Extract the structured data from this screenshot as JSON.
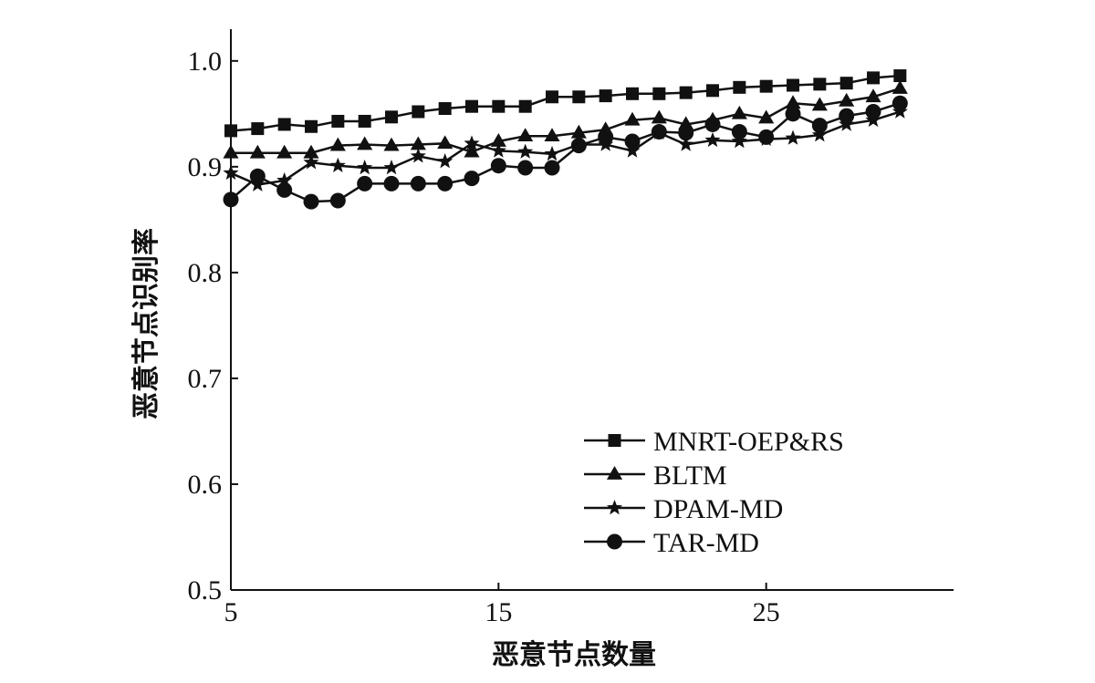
{
  "chart_data": {
    "type": "line",
    "xlabel": "恶意节点数量",
    "ylabel": "恶意节点识别率",
    "xlim": [
      5,
      32
    ],
    "ylim": [
      0.5,
      1.03
    ],
    "xticks": [
      5,
      15,
      25
    ],
    "yticks": [
      0.5,
      0.6,
      0.7,
      0.8,
      0.9,
      1.0
    ],
    "ytick_labels": [
      "0.5",
      "0.6",
      "0.7",
      "0.8",
      "0.9",
      "1.0"
    ],
    "x": [
      5,
      6,
      7,
      8,
      9,
      10,
      11,
      12,
      13,
      14,
      15,
      16,
      17,
      18,
      19,
      20,
      21,
      22,
      23,
      24,
      25,
      26,
      27,
      28,
      29,
      30
    ],
    "legend_position": "lower-right",
    "series": [
      {
        "name": "MNRT-OEP&RS",
        "marker": "square",
        "values": [
          0.934,
          0.936,
          0.94,
          0.938,
          0.943,
          0.943,
          0.947,
          0.952,
          0.955,
          0.957,
          0.957,
          0.957,
          0.966,
          0.966,
          0.967,
          0.969,
          0.969,
          0.97,
          0.972,
          0.975,
          0.976,
          0.977,
          0.978,
          0.979,
          0.984,
          0.986
        ]
      },
      {
        "name": "BLTM",
        "marker": "triangle",
        "values": [
          0.913,
          0.913,
          0.913,
          0.913,
          0.92,
          0.921,
          0.92,
          0.921,
          0.922,
          0.914,
          0.924,
          0.929,
          0.929,
          0.932,
          0.935,
          0.944,
          0.946,
          0.94,
          0.944,
          0.95,
          0.946,
          0.96,
          0.958,
          0.962,
          0.966,
          0.974
        ]
      },
      {
        "name": "DPAM-MD",
        "marker": "star",
        "values": [
          0.894,
          0.883,
          0.887,
          0.904,
          0.901,
          0.899,
          0.899,
          0.91,
          0.905,
          0.922,
          0.915,
          0.914,
          0.912,
          0.921,
          0.921,
          0.915,
          0.932,
          0.921,
          0.925,
          0.924,
          0.926,
          0.927,
          0.93,
          0.94,
          0.944,
          0.952
        ]
      },
      {
        "name": "TAR-MD",
        "marker": "circle",
        "values": [
          0.869,
          0.891,
          0.878,
          0.867,
          0.868,
          0.884,
          0.884,
          0.884,
          0.884,
          0.889,
          0.901,
          0.899,
          0.899,
          0.92,
          0.928,
          0.924,
          0.933,
          0.932,
          0.94,
          0.933,
          0.928,
          0.95,
          0.939,
          0.948,
          0.952,
          0.96
        ]
      }
    ]
  }
}
